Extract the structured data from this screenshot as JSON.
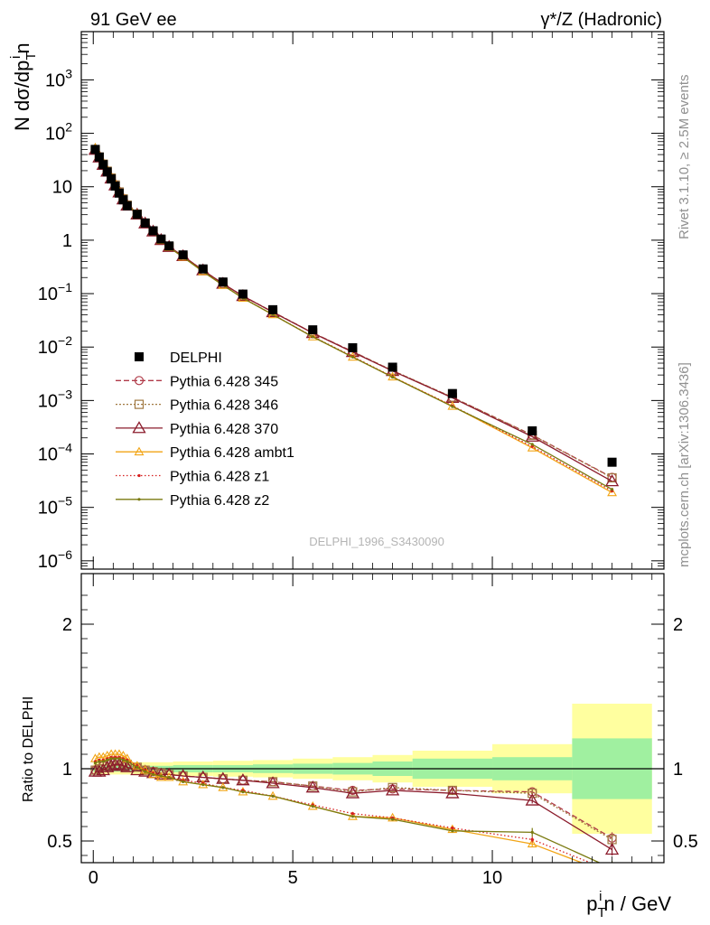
{
  "header": {
    "left": "91 GeV ee",
    "right": "γ*/Z (Hadronic)"
  },
  "side_labels": {
    "rivet": "Rivet 3.1.10, ≥ 2.5M events",
    "mcplots": "mcplots.cern.ch [arXiv:1306.3436]"
  },
  "watermark": "DELPHI_1996_S3430090",
  "axis_labels": {
    "y_main": "N dσ/dp",
    "y_main_sub": "T",
    "y_main_sup": "i",
    "y_main_suffix": "n",
    "y_ratio": "Ratio to DELPHI",
    "x": "p",
    "x_sub": "T",
    "x_sup": "i",
    "x_suffix": "n / GeV"
  },
  "legend": [
    {
      "label": "DELPHI"
    },
    {
      "label": "Pythia 6.428 345"
    },
    {
      "label": "Pythia 6.428 346"
    },
    {
      "label": "Pythia 6.428 370"
    },
    {
      "label": "Pythia 6.428 ambt1"
    },
    {
      "label": "Pythia 6.428 z1"
    },
    {
      "label": "Pythia 6.428 z2"
    }
  ],
  "chart_data": {
    "type": "line",
    "x_range": [
      -0.3,
      14.3
    ],
    "main_ylim": [
      7e-07,
      8000
    ],
    "main_log_y": true,
    "ratio_ylim": [
      0.35,
      2.35
    ],
    "main_yticks": [
      {
        "v": 1000,
        "m": "10",
        "e": "3"
      },
      {
        "v": 100,
        "m": "10",
        "e": "2"
      },
      {
        "v": 10,
        "m": "10",
        "e": ""
      },
      {
        "v": 1,
        "m": "1",
        "e": ""
      },
      {
        "v": 0.1,
        "m": "10",
        "e": "−1"
      },
      {
        "v": 0.01,
        "m": "10",
        "e": "−2"
      },
      {
        "v": 0.001,
        "m": "10",
        "e": "−3"
      },
      {
        "v": 0.0001,
        "m": "10",
        "e": "−4"
      },
      {
        "v": 1e-05,
        "m": "10",
        "e": "−5"
      },
      {
        "v": 1e-06,
        "m": "10",
        "e": "−6"
      }
    ],
    "ratio_yticks": [
      {
        "v": 0.5,
        "l": "0.5"
      },
      {
        "v": 1,
        "l": "1"
      },
      {
        "v": 2,
        "l": "2"
      }
    ],
    "xticks": [
      {
        "v": 0,
        "l": "0"
      },
      {
        "v": 5,
        "l": "5"
      },
      {
        "v": 10,
        "l": "10"
      }
    ],
    "x": [
      0.05,
      0.15,
      0.25,
      0.35,
      0.45,
      0.55,
      0.65,
      0.75,
      0.85,
      1.1,
      1.3,
      1.5,
      1.7,
      1.9,
      2.25,
      2.75,
      3.25,
      3.75,
      4.5,
      5.5,
      6.5,
      7.5,
      9.0,
      11.0,
      13.0
    ],
    "data": {
      "name": "DELPHI",
      "values": [
        50,
        36,
        26,
        19,
        14,
        10.3,
        7.6,
        5.7,
        4.4,
        3.05,
        2.1,
        1.5,
        1.05,
        0.78,
        0.53,
        0.29,
        0.165,
        0.098,
        0.05,
        0.021,
        0.0097,
        0.0042,
        0.00135,
        0.00027,
        7e-05
      ],
      "bands": [
        {
          "x0": 0.0,
          "x1": 1.0,
          "g": 0.02,
          "y": 0.04
        },
        {
          "x0": 1.0,
          "x1": 2.0,
          "g": 0.02,
          "y": 0.045
        },
        {
          "x0": 2.0,
          "x1": 3.0,
          "g": 0.025,
          "y": 0.05
        },
        {
          "x0": 3.0,
          "x1": 4.0,
          "g": 0.025,
          "y": 0.055
        },
        {
          "x0": 4.0,
          "x1": 5.0,
          "g": 0.03,
          "y": 0.06
        },
        {
          "x0": 5.0,
          "x1": 6.0,
          "g": 0.035,
          "y": 0.07
        },
        {
          "x0": 6.0,
          "x1": 7.0,
          "g": 0.04,
          "y": 0.08
        },
        {
          "x0": 7.0,
          "x1": 8.0,
          "g": 0.05,
          "y": 0.095
        },
        {
          "x0": 8.0,
          "x1": 10.0,
          "g": 0.07,
          "y": 0.125
        },
        {
          "x0": 10.0,
          "x1": 12.0,
          "g": 0.08,
          "y": 0.17
        },
        {
          "x0": 12.0,
          "x1": 14.0,
          "g": 0.21,
          "y": 0.45
        }
      ]
    },
    "series": [
      {
        "name": "Pythia 6.428 345",
        "color": "#b03a48",
        "dash": "6,3",
        "marker": "circle",
        "ratio": [
          0.99,
          1.0,
          1.02,
          1.03,
          1.04,
          1.05,
          1.05,
          1.04,
          1.03,
          1.01,
          0.99,
          0.98,
          0.97,
          0.96,
          0.95,
          0.94,
          0.93,
          0.92,
          0.91,
          0.88,
          0.85,
          0.86,
          0.85,
          0.84,
          0.52
        ],
        "ratio_err": [
          0,
          0,
          0,
          0,
          0,
          0,
          0,
          0,
          0,
          0,
          0,
          0,
          0,
          0,
          0,
          0,
          0,
          0,
          0,
          0,
          0,
          0,
          0.01,
          0.02,
          0.04
        ]
      },
      {
        "name": "Pythia 6.428 346",
        "color": "#a07840",
        "dash": "2,2",
        "marker": "square",
        "ratio": [
          0.99,
          1.0,
          1.02,
          1.03,
          1.04,
          1.05,
          1.05,
          1.04,
          1.03,
          1.01,
          0.99,
          0.98,
          0.97,
          0.96,
          0.95,
          0.94,
          0.93,
          0.92,
          0.91,
          0.88,
          0.84,
          0.87,
          0.85,
          0.83,
          0.51
        ],
        "ratio_err": [
          0,
          0,
          0,
          0,
          0,
          0,
          0,
          0,
          0,
          0,
          0,
          0,
          0,
          0,
          0,
          0,
          0,
          0,
          0,
          0,
          0,
          0,
          0.01,
          0.02,
          0.04
        ]
      },
      {
        "name": "Pythia 6.428 370",
        "color": "#8b1c2c",
        "dash": "",
        "marker": "triangle",
        "ratio": [
          0.98,
          0.98,
          0.99,
          1.01,
          1.02,
          1.03,
          1.03,
          1.02,
          1.01,
          0.99,
          0.98,
          0.97,
          0.96,
          0.96,
          0.95,
          0.94,
          0.93,
          0.92,
          0.9,
          0.87,
          0.83,
          0.85,
          0.83,
          0.78,
          0.44
        ],
        "ratio_err": [
          0,
          0,
          0,
          0,
          0,
          0,
          0,
          0,
          0,
          0,
          0,
          0,
          0,
          0,
          0,
          0,
          0,
          0,
          0,
          0,
          0,
          0,
          0.01,
          0.02,
          0.04
        ]
      },
      {
        "name": "Pythia 6.428 ambt1",
        "color": "#f2a516",
        "dash": "",
        "marker": "triangle-small",
        "ratio": [
          1.07,
          1.08,
          1.08,
          1.09,
          1.1,
          1.1,
          1.1,
          1.09,
          1.07,
          1.02,
          0.99,
          0.96,
          0.94,
          0.94,
          0.91,
          0.89,
          0.87,
          0.84,
          0.81,
          0.74,
          0.67,
          0.66,
          0.58,
          0.48,
          0.27
        ],
        "ratio_err": [
          0,
          0,
          0,
          0,
          0,
          0,
          0,
          0,
          0,
          0,
          0,
          0,
          0,
          0,
          0,
          0,
          0,
          0,
          0,
          0,
          0,
          0,
          0.01,
          0.02,
          0.05
        ]
      },
      {
        "name": "Pythia 6.428 z1",
        "color": "#d62020",
        "dash": "1.5,2.5",
        "marker": "dot",
        "ratio": [
          1.05,
          1.06,
          1.06,
          1.07,
          1.08,
          1.08,
          1.08,
          1.07,
          1.06,
          1.02,
          0.99,
          0.97,
          0.95,
          0.94,
          0.92,
          0.9,
          0.87,
          0.85,
          0.81,
          0.75,
          0.69,
          0.66,
          0.59,
          0.51,
          0.29
        ],
        "ratio_err": [
          0,
          0,
          0,
          0,
          0,
          0,
          0,
          0,
          0,
          0,
          0,
          0,
          0,
          0,
          0,
          0,
          0,
          0,
          0,
          0,
          0,
          0,
          0.01,
          0.02,
          0.05
        ]
      },
      {
        "name": "Pythia 6.428 z2",
        "color": "#7a7a10",
        "dash": "",
        "marker": "dot",
        "ratio": [
          1.04,
          1.05,
          1.05,
          1.06,
          1.07,
          1.07,
          1.07,
          1.06,
          1.05,
          1.01,
          0.98,
          0.96,
          0.95,
          0.94,
          0.91,
          0.89,
          0.87,
          0.84,
          0.81,
          0.74,
          0.67,
          0.65,
          0.57,
          0.56,
          0.31
        ],
        "ratio_err": [
          0,
          0,
          0,
          0,
          0,
          0,
          0,
          0,
          0,
          0,
          0,
          0,
          0,
          0,
          0,
          0,
          0,
          0,
          0,
          0,
          0,
          0,
          0.01,
          0.03,
          0.05
        ]
      }
    ]
  }
}
